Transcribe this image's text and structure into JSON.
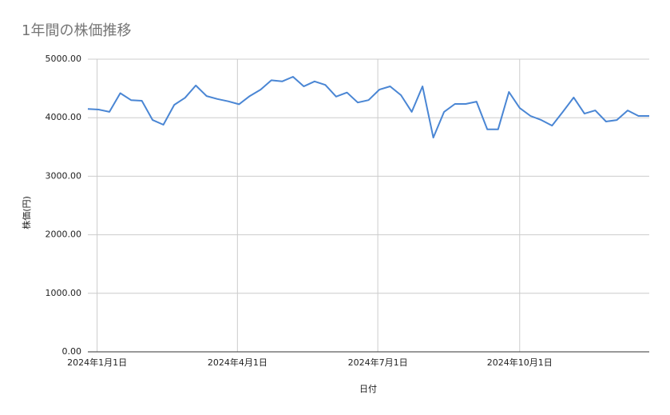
{
  "chart_data": {
    "type": "line",
    "title": "1年間の株価推移",
    "x_label": "日付",
    "y_label": "株価(円)",
    "x": [
      "2023-12-26",
      "2024-01-02",
      "2024-01-09",
      "2024-01-16",
      "2024-01-23",
      "2024-01-30",
      "2024-02-06",
      "2024-02-13",
      "2024-02-20",
      "2024-02-27",
      "2024-03-05",
      "2024-03-12",
      "2024-03-19",
      "2024-03-26",
      "2024-04-02",
      "2024-04-09",
      "2024-04-16",
      "2024-04-23",
      "2024-04-30",
      "2024-05-07",
      "2024-05-14",
      "2024-05-21",
      "2024-05-28",
      "2024-06-04",
      "2024-06-11",
      "2024-06-18",
      "2024-06-25",
      "2024-07-02",
      "2024-07-09",
      "2024-07-16",
      "2024-07-23",
      "2024-07-30",
      "2024-08-06",
      "2024-08-13",
      "2024-08-20",
      "2024-08-27",
      "2024-09-03",
      "2024-09-10",
      "2024-09-17",
      "2024-09-24",
      "2024-10-01",
      "2024-10-08",
      "2024-10-15",
      "2024-10-22",
      "2024-10-29",
      "2024-11-05",
      "2024-11-12",
      "2024-11-19",
      "2024-11-26",
      "2024-12-03",
      "2024-12-10",
      "2024-12-17",
      "2024-12-24"
    ],
    "values": [
      4150,
      4140,
      4100,
      4420,
      4300,
      4290,
      3960,
      3880,
      4220,
      4340,
      4550,
      4370,
      4320,
      4280,
      4230,
      4370,
      4480,
      4640,
      4620,
      4700,
      4535,
      4620,
      4560,
      4360,
      4430,
      4260,
      4300,
      4480,
      4535,
      4385,
      4100,
      4535,
      3660,
      4100,
      4235,
      4235,
      4275,
      3800,
      3800,
      4440,
      4165,
      4030,
      3960,
      3865,
      4100,
      4345,
      4070,
      4125,
      3935,
      3960,
      4125,
      4030,
      4030
    ],
    "color": "#4a86d4",
    "xlim": [
      "2023-12-26",
      "2024-12-24"
    ],
    "xticks": [
      {
        "value": "2024-01-01",
        "label": "2024年1月1日"
      },
      {
        "value": "2024-04-01",
        "label": "2024年4月1日"
      },
      {
        "value": "2024-07-01",
        "label": "2024年7月1日"
      },
      {
        "value": "2024-10-01",
        "label": "2024年10月1日"
      }
    ],
    "ylim": [
      0,
      5000
    ],
    "yticks": [
      {
        "value": 0,
        "label": "0.00"
      },
      {
        "value": 1000,
        "label": "1000.00"
      },
      {
        "value": 2000,
        "label": "2000.00"
      },
      {
        "value": 3000,
        "label": "3000.00"
      },
      {
        "value": 4000,
        "label": "4000.00"
      },
      {
        "value": 5000,
        "label": "5000.00"
      }
    ],
    "grid": true
  }
}
